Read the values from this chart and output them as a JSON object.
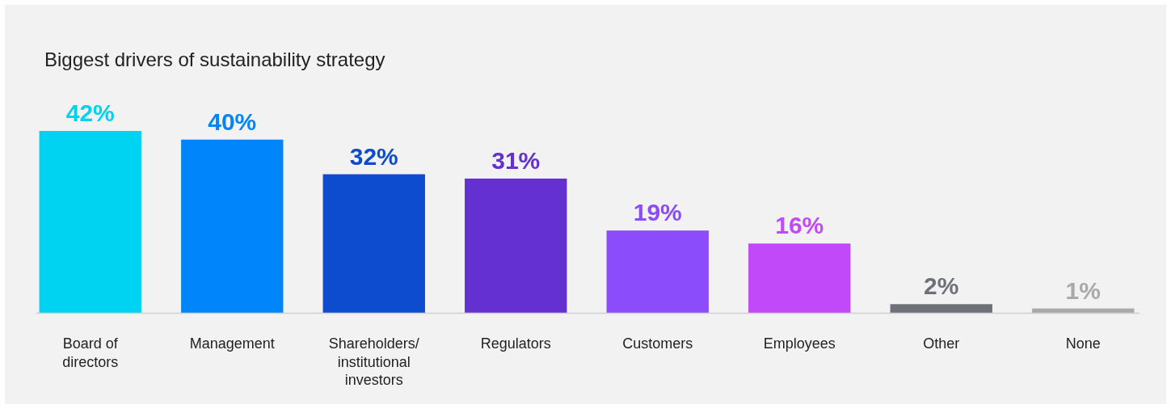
{
  "chart_data": {
    "type": "bar",
    "title": "Biggest drivers of sustainability strategy",
    "categories": [
      "Board of directors",
      "Management",
      "Shareholders/ institutional investors",
      "Regulators",
      "Customers",
      "Employees",
      "Other",
      "None"
    ],
    "values": [
      42,
      40,
      32,
      31,
      19,
      16,
      2,
      1
    ],
    "colors": [
      "#00d2f2",
      "#0086fa",
      "#0d4ccf",
      "#6530d2",
      "#8b4cfb",
      "#c149f9",
      "#6e7177",
      "#a9a9aa"
    ],
    "value_labels": [
      "42%",
      "40%",
      "32%",
      "31%",
      "19%",
      "16%",
      "2%",
      "1%"
    ]
  }
}
